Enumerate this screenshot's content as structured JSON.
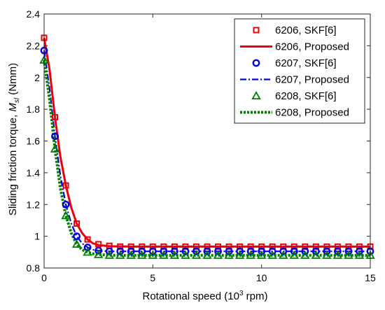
{
  "chart_data": {
    "type": "line",
    "xlabel": "Rotational speed (10",
    "xlabel_sup": "3",
    "xlabel_tail": " rpm)",
    "ylabel_prefix": "Sliding friction torque, ",
    "ylabel_var": "M",
    "ylabel_sub": "sl",
    "ylabel_unit": " (Nmm)",
    "xlim": [
      0,
      15
    ],
    "ylim": [
      0.8,
      2.4
    ],
    "xticks": [
      0,
      5,
      10,
      15
    ],
    "yticks": [
      0.8,
      1,
      1.2,
      1.4,
      1.6,
      1.8,
      2,
      2.2,
      2.4
    ],
    "grid": false,
    "legend_position": "top-right",
    "series": [
      {
        "name": "6206, SKF[6]",
        "color": "#e8000b",
        "style": "markers",
        "marker": "square",
        "x": [
          0,
          0.5,
          1,
          1.5,
          2,
          2.5,
          3,
          3.5,
          4,
          4.5,
          5,
          5.5,
          6,
          6.5,
          7,
          7.5,
          8,
          8.5,
          9,
          9.5,
          10,
          10.5,
          11,
          11.5,
          12,
          12.5,
          13,
          13.5,
          14,
          14.5,
          15
        ],
        "y": [
          2.25,
          1.75,
          1.32,
          1.08,
          0.98,
          0.95,
          0.94,
          0.935,
          0.935,
          0.935,
          0.935,
          0.935,
          0.935,
          0.935,
          0.935,
          0.935,
          0.935,
          0.935,
          0.935,
          0.935,
          0.935,
          0.935,
          0.935,
          0.935,
          0.935,
          0.935,
          0.935,
          0.935,
          0.935,
          0.935,
          0.935
        ]
      },
      {
        "name": "6206, Proposed",
        "color": "#e8000b",
        "style": "solid",
        "x": [
          0,
          0.25,
          0.5,
          0.75,
          1,
          1.25,
          1.5,
          1.75,
          2,
          2.25,
          2.5,
          3,
          4,
          5,
          7.5,
          10,
          12.5,
          15
        ],
        "y": [
          2.25,
          2.05,
          1.75,
          1.5,
          1.32,
          1.18,
          1.08,
          1.02,
          0.98,
          0.955,
          0.945,
          0.937,
          0.935,
          0.935,
          0.935,
          0.935,
          0.935,
          0.935
        ]
      },
      {
        "name": "6207, SKF[6]",
        "color": "#0000e0",
        "style": "markers",
        "marker": "circle",
        "x": [
          0,
          0.5,
          1,
          1.5,
          2,
          2.5,
          3,
          3.5,
          4,
          4.5,
          5,
          5.5,
          6,
          6.5,
          7,
          7.5,
          8,
          8.5,
          9,
          9.5,
          10,
          10.5,
          11,
          11.5,
          12,
          12.5,
          13,
          13.5,
          14,
          14.5,
          15
        ],
        "y": [
          2.17,
          1.63,
          1.2,
          1.0,
          0.93,
          0.91,
          0.905,
          0.905,
          0.905,
          0.905,
          0.905,
          0.905,
          0.905,
          0.905,
          0.905,
          0.905,
          0.905,
          0.905,
          0.905,
          0.905,
          0.905,
          0.905,
          0.905,
          0.905,
          0.905,
          0.905,
          0.905,
          0.905,
          0.905,
          0.905,
          0.905
        ]
      },
      {
        "name": "6207, Proposed",
        "color": "#0000e0",
        "style": "dashdot",
        "x": [
          0,
          0.25,
          0.5,
          0.75,
          1,
          1.25,
          1.5,
          1.75,
          2,
          2.25,
          2.5,
          3,
          4,
          5,
          7.5,
          10,
          12.5,
          15
        ],
        "y": [
          2.17,
          1.93,
          1.63,
          1.38,
          1.2,
          1.08,
          1.0,
          0.955,
          0.93,
          0.915,
          0.91,
          0.905,
          0.905,
          0.905,
          0.905,
          0.905,
          0.905,
          0.905
        ]
      },
      {
        "name": "6208, SKF[6]",
        "color": "#008000",
        "style": "markers",
        "marker": "triangle",
        "x": [
          0,
          0.5,
          1,
          1.5,
          2,
          2.5,
          3,
          3.5,
          4,
          4.5,
          5,
          5.5,
          6,
          6.5,
          7,
          7.5,
          8,
          8.5,
          9,
          9.5,
          10,
          10.5,
          11,
          11.5,
          12,
          12.5,
          13,
          13.5,
          14,
          14.5,
          15
        ],
        "y": [
          2.11,
          1.55,
          1.13,
          0.95,
          0.9,
          0.885,
          0.88,
          0.88,
          0.88,
          0.88,
          0.88,
          0.88,
          0.88,
          0.88,
          0.88,
          0.88,
          0.88,
          0.88,
          0.88,
          0.88,
          0.88,
          0.88,
          0.88,
          0.88,
          0.88,
          0.88,
          0.88,
          0.88,
          0.88,
          0.88,
          0.88
        ]
      },
      {
        "name": "6208, Proposed",
        "color": "#008000",
        "style": "dotted",
        "x": [
          0,
          0.25,
          0.5,
          0.75,
          1,
          1.25,
          1.5,
          1.75,
          2,
          2.25,
          2.5,
          3,
          4,
          5,
          7.5,
          10,
          12.5,
          15
        ],
        "y": [
          2.11,
          1.86,
          1.55,
          1.3,
          1.13,
          1.02,
          0.95,
          0.915,
          0.9,
          0.89,
          0.885,
          0.88,
          0.88,
          0.88,
          0.88,
          0.88,
          0.88,
          0.88
        ]
      }
    ]
  }
}
